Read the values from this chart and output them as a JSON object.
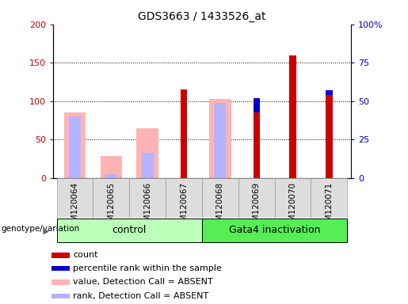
{
  "title": "GDS3663 / 1433526_at",
  "samples": [
    "GSM120064",
    "GSM120065",
    "GSM120066",
    "GSM120067",
    "GSM120068",
    "GSM120069",
    "GSM120070",
    "GSM120071"
  ],
  "count": [
    0,
    0,
    0,
    115,
    0,
    85,
    160,
    108
  ],
  "percentile_rank_scaled": [
    0,
    0,
    0,
    115,
    0,
    104,
    123,
    114
  ],
  "value_absent": [
    85,
    28,
    65,
    0,
    103,
    0,
    0,
    0
  ],
  "rank_absent_scaled": [
    80,
    5,
    33,
    0,
    98,
    0,
    0,
    0
  ],
  "blue_marker_y": [
    0,
    0,
    0,
    115,
    0,
    104,
    123,
    114
  ],
  "ylim_left": [
    0,
    200
  ],
  "ylim_right": [
    0,
    100
  ],
  "yticks_left": [
    0,
    50,
    100,
    150,
    200
  ],
  "ytick_labels_left": [
    "0",
    "50",
    "100",
    "150",
    "200"
  ],
  "yticks_right": [
    0,
    25,
    50,
    75,
    100
  ],
  "ytick_labels_right": [
    "0",
    "25",
    "50",
    "75",
    "100%"
  ],
  "color_count": "#cc0000",
  "color_percentile": "#0000cc",
  "color_value_absent": "#ffb3b3",
  "color_rank_absent": "#b3b3ff",
  "group_label_control": "control",
  "group_label_gata4": "Gata4 inactivation",
  "group_bg_control": "#bbffbb",
  "group_bg_gata4": "#55ee55",
  "legend_items": [
    "count",
    "percentile rank within the sample",
    "value, Detection Call = ABSENT",
    "rank, Detection Call = ABSENT"
  ],
  "legend_colors": [
    "#cc0000",
    "#0000cc",
    "#ffb3b3",
    "#b3b3ff"
  ],
  "genotype_label": "genotype/variation"
}
